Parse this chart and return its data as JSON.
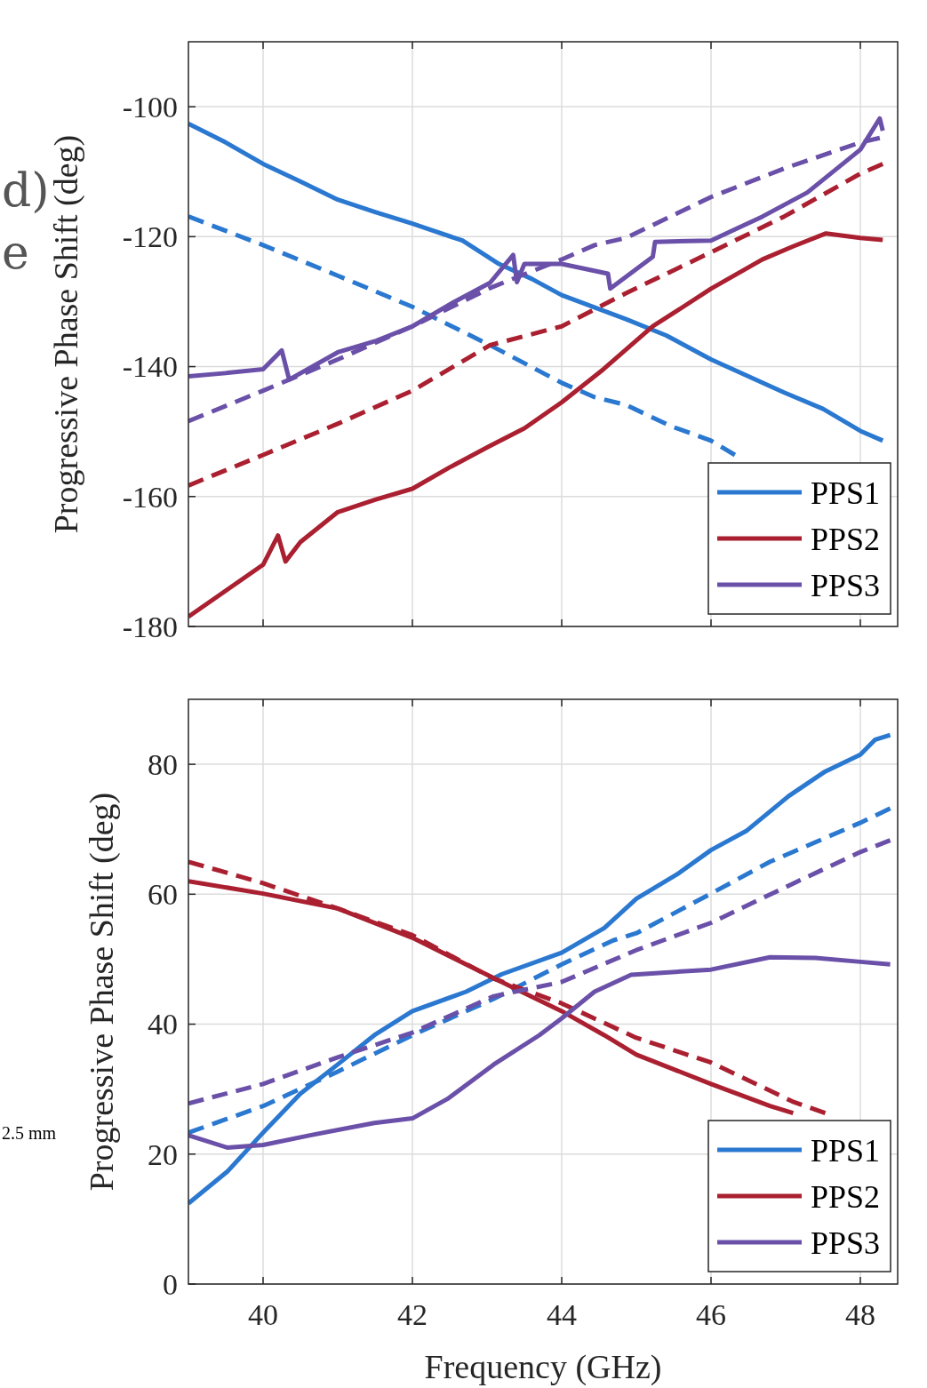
{
  "chart_data": [
    {
      "type": "line",
      "ylabel": "Progressive Phase Shift (deg)",
      "xlim": [
        39,
        48.5
      ],
      "ylim": [
        -180,
        -90
      ],
      "xticks": [
        40,
        42,
        44,
        46,
        48
      ],
      "yticks": [
        -180,
        -160,
        -140,
        -120,
        -100
      ],
      "tick_labels": "y",
      "grid": true,
      "legend": "bottom right",
      "annotations": [
        "d)",
        "e"
      ],
      "series": [
        {
          "name": "PPS1",
          "color": "#2a78d0",
          "line_style": "solid",
          "x": [
            39,
            39.5,
            40,
            40.5,
            41,
            41.5,
            42,
            42.67,
            43.16,
            43.6,
            44,
            44.86,
            45.4,
            46,
            46.98,
            47.5,
            48,
            48.3
          ],
          "values": [
            -102.6,
            -105.5,
            -108.8,
            -111.5,
            -114.3,
            -116.2,
            -118,
            -120.6,
            -124.2,
            -126.5,
            -129,
            -132.7,
            -135.2,
            -138.9,
            -144,
            -146.5,
            -149.9,
            -151.4
          ]
        },
        {
          "color": "#2a78d0",
          "line_style": "dashed",
          "x": [
            39,
            40,
            41,
            42,
            43.04,
            44,
            44.44,
            44.86,
            45.47,
            46,
            46.32
          ],
          "values": [
            -116.9,
            -121.3,
            -126,
            -130.8,
            -136.7,
            -142.5,
            -144.7,
            -145.9,
            -149.2,
            -151.4,
            -153.6
          ]
        },
        {
          "name": "PPS2",
          "color": "#aa2030",
          "line_style": "solid",
          "x": [
            39,
            39.5,
            40,
            40.2,
            40.3,
            40.5,
            41,
            41.5,
            42,
            42.5,
            43.04,
            43.5,
            44,
            44.56,
            45.22,
            45.6,
            46,
            46.69,
            47.1,
            47.54,
            48,
            48.3
          ],
          "values": [
            -178.5,
            -174.5,
            -170.5,
            -166,
            -170,
            -167,
            -162.4,
            -160.5,
            -158.8,
            -155.5,
            -152.2,
            -149.5,
            -145.5,
            -140.4,
            -133.8,
            -131,
            -128,
            -123.5,
            -121.5,
            -119.5,
            -120.2,
            -120.5
          ]
        },
        {
          "color": "#aa2030",
          "line_style": "dashed",
          "x": [
            39,
            40,
            41,
            42,
            43.04,
            44,
            44.86,
            46,
            46.98,
            48,
            48.3
          ],
          "values": [
            -158.3,
            -153.6,
            -148.8,
            -143.7,
            -136.7,
            -133.8,
            -128.7,
            -122.4,
            -116.9,
            -110.3,
            -108.8
          ]
        },
        {
          "name": "PPS3",
          "color": "#6a50a8",
          "line_style": "solid",
          "x": [
            39,
            39.5,
            40,
            40.25,
            40.35,
            41,
            41.52,
            42,
            42.55,
            43.04,
            43.35,
            43.4,
            43.5,
            44,
            44.62,
            44.65,
            45.22,
            45.25,
            46,
            46.69,
            47.29,
            48,
            48.26,
            48.3
          ],
          "values": [
            -141.5,
            -141,
            -140.4,
            -137.5,
            -142,
            -137.8,
            -136,
            -133.8,
            -130.1,
            -127.1,
            -122.8,
            -127,
            -124.2,
            -124.2,
            -125.7,
            -128,
            -123.1,
            -120.8,
            -120.6,
            -116.9,
            -113.2,
            -106.6,
            -101.8,
            -103.7
          ]
        },
        {
          "color": "#6a50a8",
          "line_style": "dashed",
          "x": [
            39,
            40,
            41,
            42,
            43.04,
            44,
            44.44,
            44.86,
            46,
            46.98,
            48,
            48.26
          ],
          "values": [
            -148.4,
            -143.7,
            -138.9,
            -133.8,
            -127.9,
            -123.5,
            -121.3,
            -120.2,
            -113.9,
            -109.5,
            -105.5,
            -104.8
          ]
        }
      ]
    },
    {
      "type": "line",
      "xlabel": "Frequency (GHz)",
      "ylabel": "Progressive Phase Shift (deg)",
      "xlim": [
        39,
        48.5
      ],
      "ylim": [
        0,
        90
      ],
      "xticks": [
        40,
        42,
        44,
        46,
        48
      ],
      "yticks": [
        0,
        20,
        40,
        60,
        80
      ],
      "grid": true,
      "legend": "bottom right",
      "annotations": [
        "2.5 mm"
      ],
      "series": [
        {
          "name": "PPS1",
          "color": "#2a78d0",
          "line_style": "solid",
          "x": [
            39,
            39.52,
            40,
            40.5,
            41,
            41.49,
            42,
            42.72,
            43.2,
            44,
            44.57,
            45,
            45.55,
            46,
            46.48,
            47.04,
            47.53,
            48,
            48.2,
            48.4
          ],
          "values": [
            12.4,
            17.3,
            23.3,
            29.3,
            33.8,
            38.3,
            42,
            45,
            47.7,
            51,
            54.8,
            59.3,
            63.1,
            66.8,
            69.8,
            75.1,
            78.9,
            81.5,
            83.8,
            84.5
          ]
        },
        {
          "color": "#2a78d0",
          "line_style": "dashed",
          "x": [
            39,
            40,
            41,
            42,
            43.09,
            44,
            44.69,
            45,
            46,
            46.79,
            48,
            48.4
          ],
          "values": [
            23.3,
            27.4,
            32.7,
            38.3,
            43.9,
            49.2,
            52.9,
            54,
            60.1,
            65,
            71,
            73.2
          ]
        },
        {
          "name": "PPS2",
          "color": "#aa2030",
          "line_style": "solid",
          "x": [
            39,
            40,
            41,
            42,
            42.79,
            43.46,
            44,
            44.57,
            45,
            46,
            46.79,
            47.1
          ],
          "values": [
            62,
            60.1,
            57.8,
            53.3,
            48.8,
            45,
            42,
            38.3,
            35.3,
            30.8,
            27.4,
            26.3
          ]
        },
        {
          "color": "#aa2030",
          "line_style": "dashed",
          "x": [
            39,
            40,
            41,
            42,
            43.09,
            44,
            45,
            46,
            47.09,
            47.53
          ],
          "values": [
            65,
            61.7,
            57.8,
            53.7,
            47,
            43.2,
            37.9,
            34.1,
            28.1,
            26.3
          ]
        },
        {
          "name": "PPS3",
          "color": "#6a50a8",
          "line_style": "solid",
          "x": [
            39,
            39.52,
            40,
            40.63,
            41.49,
            42,
            42.47,
            43.09,
            43.7,
            44,
            44.44,
            44.93,
            46,
            46.79,
            47.4,
            48,
            48.4
          ],
          "values": [
            22.9,
            21,
            21.4,
            22.9,
            24.8,
            25.5,
            28.5,
            33.8,
            38.3,
            40.9,
            45,
            47.6,
            48.4,
            50.3,
            50.2,
            49.6,
            49.2
          ]
        },
        {
          "color": "#6a50a8",
          "line_style": "dashed",
          "x": [
            39,
            40,
            41,
            42,
            43.09,
            44,
            45,
            46,
            47.09,
            48,
            48.4
          ],
          "values": [
            27.8,
            30.8,
            34.9,
            38.7,
            44.3,
            46.5,
            51.4,
            55.6,
            61.6,
            66.5,
            68.3
          ]
        }
      ]
    }
  ]
}
